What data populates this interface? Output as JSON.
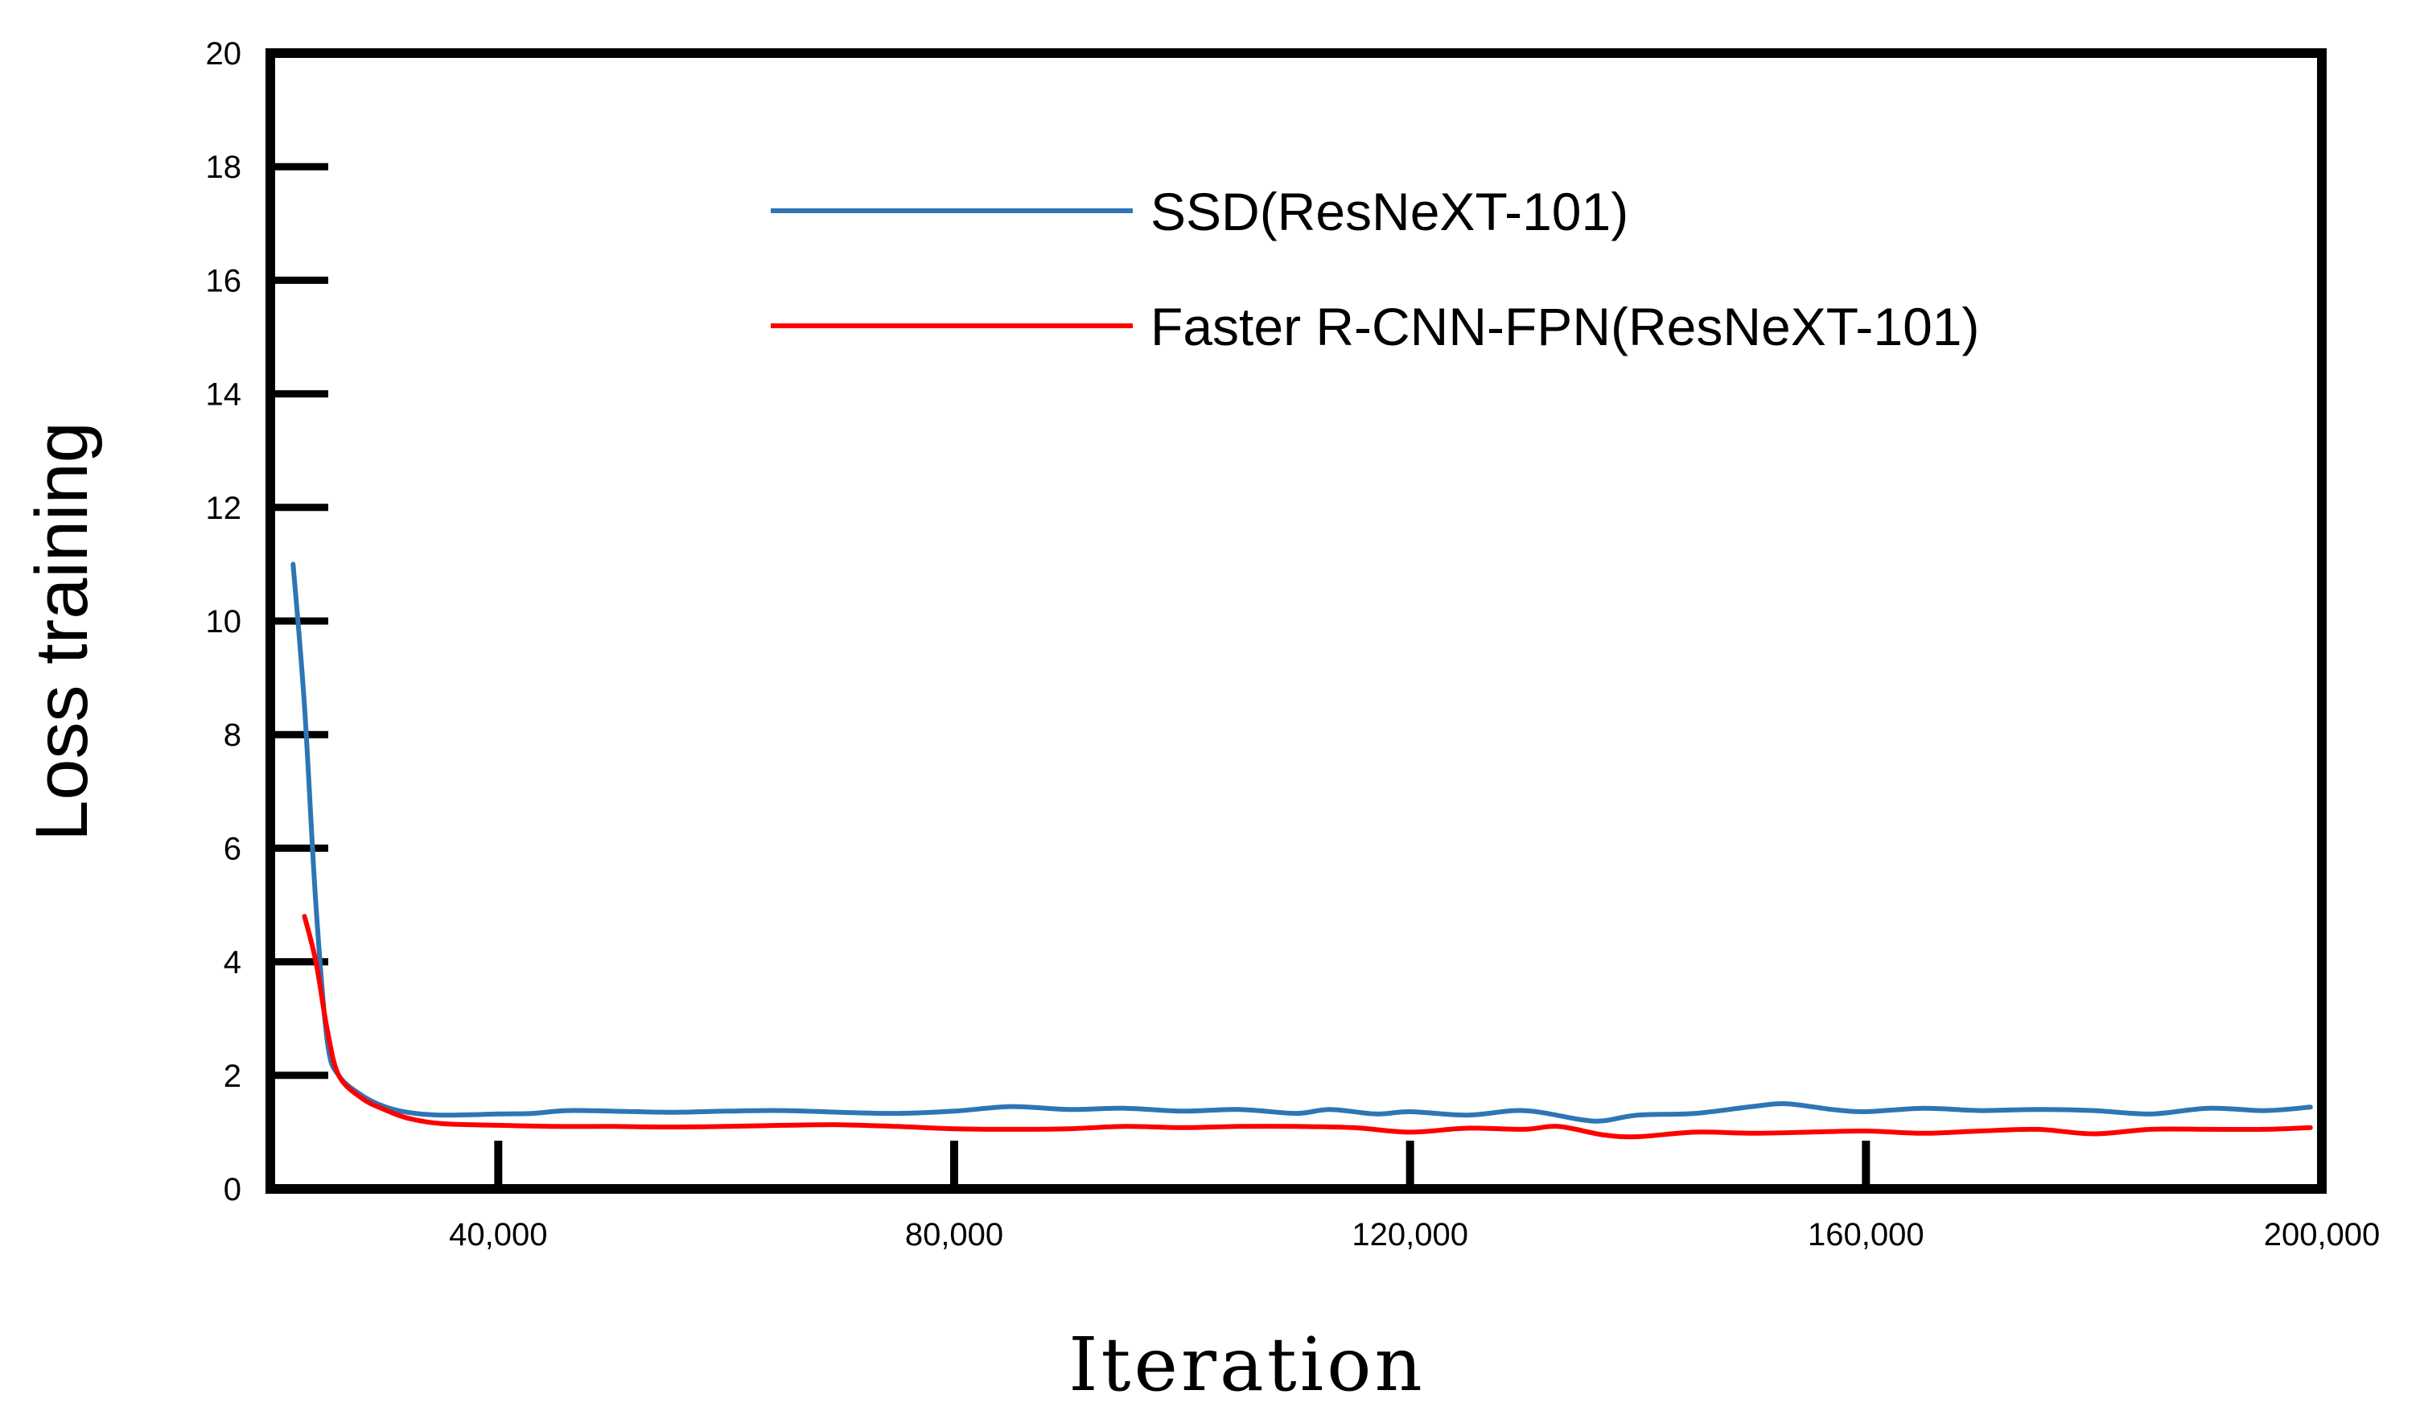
{
  "chart_data": {
    "type": "line",
    "title": "",
    "xlabel": "Iteration",
    "ylabel": "Loss training",
    "xlim": [
      20000,
      200000
    ],
    "ylim": [
      0,
      20
    ],
    "xticks": [
      {
        "value": 40000,
        "label": "40,000"
      },
      {
        "value": 80000,
        "label": "80,000"
      },
      {
        "value": 120000,
        "label": "120,000"
      },
      {
        "value": 160000,
        "label": "160,000"
      },
      {
        "value": 200000,
        "label": "200,000"
      }
    ],
    "yticks": [
      {
        "value": 0,
        "label": "0"
      },
      {
        "value": 2,
        "label": "2"
      },
      {
        "value": 4,
        "label": "4"
      },
      {
        "value": 6,
        "label": "6"
      },
      {
        "value": 8,
        "label": "8"
      },
      {
        "value": 10,
        "label": "10"
      },
      {
        "value": 12,
        "label": "12"
      },
      {
        "value": 14,
        "label": "14"
      },
      {
        "value": 16,
        "label": "16"
      },
      {
        "value": 18,
        "label": "18"
      },
      {
        "value": 20,
        "label": "20"
      }
    ],
    "grid": false,
    "legend": "top-center",
    "series": [
      {
        "name": "SSD(ResNeXT-101)",
        "color": "#2e75b6",
        "points": [
          [
            22000,
            11.0
          ],
          [
            23000,
            8.5
          ],
          [
            24000,
            5.0
          ],
          [
            25000,
            2.6
          ],
          [
            26000,
            2.0
          ],
          [
            28000,
            1.65
          ],
          [
            30000,
            1.45
          ],
          [
            32000,
            1.35
          ],
          [
            35000,
            1.3
          ],
          [
            40000,
            1.32
          ],
          [
            43000,
            1.33
          ],
          [
            46000,
            1.38
          ],
          [
            50000,
            1.37
          ],
          [
            55000,
            1.35
          ],
          [
            60000,
            1.37
          ],
          [
            65000,
            1.38
          ],
          [
            70000,
            1.35
          ],
          [
            75000,
            1.33
          ],
          [
            80000,
            1.37
          ],
          [
            85000,
            1.45
          ],
          [
            90000,
            1.4
          ],
          [
            95000,
            1.42
          ],
          [
            100000,
            1.37
          ],
          [
            105000,
            1.4
          ],
          [
            110000,
            1.33
          ],
          [
            113000,
            1.4
          ],
          [
            117000,
            1.32
          ],
          [
            120000,
            1.36
          ],
          [
            125000,
            1.3
          ],
          [
            130000,
            1.38
          ],
          [
            135000,
            1.22
          ],
          [
            137000,
            1.2
          ],
          [
            140000,
            1.3
          ],
          [
            145000,
            1.33
          ],
          [
            150000,
            1.45
          ],
          [
            153000,
            1.5
          ],
          [
            157000,
            1.4
          ],
          [
            160000,
            1.36
          ],
          [
            165000,
            1.42
          ],
          [
            170000,
            1.38
          ],
          [
            175000,
            1.4
          ],
          [
            180000,
            1.38
          ],
          [
            185000,
            1.32
          ],
          [
            190000,
            1.42
          ],
          [
            195000,
            1.38
          ],
          [
            199000,
            1.44
          ]
        ]
      },
      {
        "name": "Faster R-CNN-FPN(ResNeXT-101)",
        "color": "#ff0000",
        "points": [
          [
            23000,
            4.8
          ],
          [
            24000,
            4.0
          ],
          [
            25000,
            2.8
          ],
          [
            26000,
            2.0
          ],
          [
            28000,
            1.6
          ],
          [
            30000,
            1.4
          ],
          [
            32000,
            1.25
          ],
          [
            35000,
            1.15
          ],
          [
            40000,
            1.12
          ],
          [
            45000,
            1.1
          ],
          [
            50000,
            1.1
          ],
          [
            55000,
            1.09
          ],
          [
            60000,
            1.1
          ],
          [
            65000,
            1.12
          ],
          [
            70000,
            1.13
          ],
          [
            75000,
            1.1
          ],
          [
            80000,
            1.06
          ],
          [
            85000,
            1.05
          ],
          [
            90000,
            1.06
          ],
          [
            95000,
            1.1
          ],
          [
            100000,
            1.08
          ],
          [
            105000,
            1.1
          ],
          [
            110000,
            1.1
          ],
          [
            115000,
            1.08
          ],
          [
            120000,
            1.0
          ],
          [
            125000,
            1.07
          ],
          [
            130000,
            1.05
          ],
          [
            133000,
            1.1
          ],
          [
            137000,
            0.95
          ],
          [
            140000,
            0.92
          ],
          [
            145000,
            1.0
          ],
          [
            150000,
            0.98
          ],
          [
            155000,
            1.0
          ],
          [
            160000,
            1.02
          ],
          [
            165000,
            0.98
          ],
          [
            170000,
            1.02
          ],
          [
            175000,
            1.05
          ],
          [
            180000,
            0.97
          ],
          [
            185000,
            1.05
          ],
          [
            190000,
            1.05
          ],
          [
            195000,
            1.05
          ],
          [
            199000,
            1.08
          ]
        ]
      }
    ]
  }
}
